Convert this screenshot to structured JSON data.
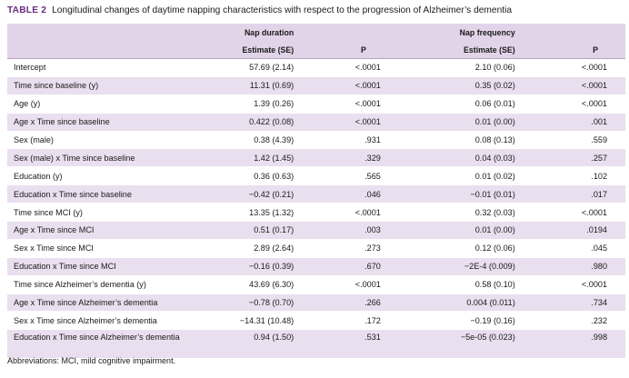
{
  "caption": {
    "label": "TABLE 2",
    "text": "Longitudinal changes of daytime napping characteristics with respect to the progression of Alzheimer’s dementia"
  },
  "header": {
    "group1": "Nap duration",
    "group2": "Nap frequency",
    "est1": "Estimate (SE)",
    "p1": "P",
    "est2": "Estimate (SE)",
    "p2": "P"
  },
  "rows": [
    {
      "label": "Intercept",
      "dur": "57.69 (2.14)",
      "p1": "<.0001",
      "freq": "2.10 (0.06)",
      "p2": "<.0001"
    },
    {
      "label": "Time since baseline (y)",
      "dur": "11.31 (0.69)",
      "p1": "<.0001",
      "freq": "0.35 (0.02)",
      "p2": "<.0001"
    },
    {
      "label": "Age (y)",
      "dur": "1.39 (0.26)",
      "p1": "<.0001",
      "freq": "0.06 (0.01)",
      "p2": "<.0001"
    },
    {
      "label": "Age x Time since baseline",
      "dur": "0.422 (0.08)",
      "p1": "<.0001",
      "freq": "0.01 (0.00)",
      "p2": ".001"
    },
    {
      "label": "Sex (male)",
      "dur": "0.38 (4.39)",
      "p1": ".931",
      "freq": "0.08 (0.13)",
      "p2": ".559"
    },
    {
      "label": "Sex (male) x Time since baseline",
      "dur": "1.42 (1.45)",
      "p1": ".329",
      "freq": "0.04 (0.03)",
      "p2": ".257"
    },
    {
      "label": "Education (y)",
      "dur": "0.36 (0.63)",
      "p1": ".565",
      "freq": "0.01 (0.02)",
      "p2": ".102"
    },
    {
      "label": "Education x Time since baseline",
      "dur": "−0.42 (0.21)",
      "p1": ".046",
      "freq": "−0.01 (0.01)",
      "p2": ".017"
    },
    {
      "label": "Time since MCI (y)",
      "dur": "13.35 (1.32)",
      "p1": "<.0001",
      "freq": "0.32 (0.03)",
      "p2": "<.0001"
    },
    {
      "label": "Age x Time since MCI",
      "dur": "0.51 (0.17)",
      "p1": ".003",
      "freq": "0.01 (0.00)",
      "p2": ".0194"
    },
    {
      "label": "Sex x Time since MCI",
      "dur": "2.89 (2.64)",
      "p1": ".273",
      "freq": "0.12 (0.06)",
      "p2": ".045"
    },
    {
      "label": "Education x Time since MCI",
      "dur": "−0.16 (0.39)",
      "p1": ".670",
      "freq": "−2E-4 (0.009)",
      "p2": ".980"
    },
    {
      "label": "Time since Alzheimer’s dementia (y)",
      "dur": "43.69 (6.30)",
      "p1": "<.0001",
      "freq": "0.58 (0.10)",
      "p2": "<.0001"
    },
    {
      "label": "Age x Time since Alzheimer’s dementia",
      "dur": "−0.78 (0.70)",
      "p1": ".266",
      "freq": "0.004 (0.011)",
      "p2": ".734"
    },
    {
      "label": "Sex x Time since Alzheimer’s dementia",
      "dur": "−14.31 (10.48)",
      "p1": ".172",
      "freq": "−0.19 (0.16)",
      "p2": ".232"
    },
    {
      "label": "Education x Time since Alzheimer’s dementia",
      "dur": "0.94 (1.50)",
      "p1": ".531",
      "freq": "−5e-05 (0.023)",
      "p2": ".998"
    }
  ],
  "footnote": "Abbreviations: MCI, mild cognitive impairment.",
  "colors": {
    "accent": "#6a2c7e",
    "header_band": "#e2d4e8",
    "stripe": "#e9dfee"
  }
}
